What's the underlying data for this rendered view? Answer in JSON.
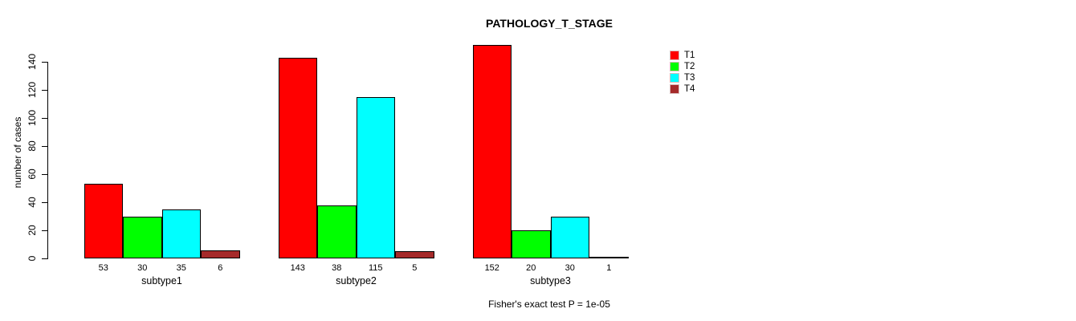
{
  "title": "PATHOLOGY_T_STAGE",
  "chart_data": {
    "type": "bar",
    "title": "PATHOLOGY_T_STAGE",
    "xlabel": "",
    "ylabel": "number of cases",
    "categories": [
      "subtype1",
      "subtype2",
      "subtype3"
    ],
    "series": [
      {
        "name": "T1",
        "color": "#ff0000",
        "values": [
          53,
          143,
          152
        ]
      },
      {
        "name": "T2",
        "color": "#00ff00",
        "values": [
          30,
          38,
          20
        ]
      },
      {
        "name": "T3",
        "color": "#00ffff",
        "values": [
          35,
          115,
          30
        ]
      },
      {
        "name": "T4",
        "color": "#a52a2a",
        "values": [
          6,
          5,
          1
        ]
      }
    ],
    "ylim": [
      0,
      140
    ],
    "yticks": [
      0,
      20,
      40,
      60,
      80,
      100,
      120,
      140
    ],
    "bar_value_labels": true,
    "grid": false,
    "legend_position": "right",
    "legend_entries": [
      "T1",
      "T2",
      "T3",
      "T4"
    ],
    "annotation": "Fisher's exact test P = 1e-05"
  },
  "colors": {
    "background": "#ffffff",
    "text": "#000000",
    "bar_border": "#000000",
    "legend_swatch_border": "#d9baba"
  }
}
